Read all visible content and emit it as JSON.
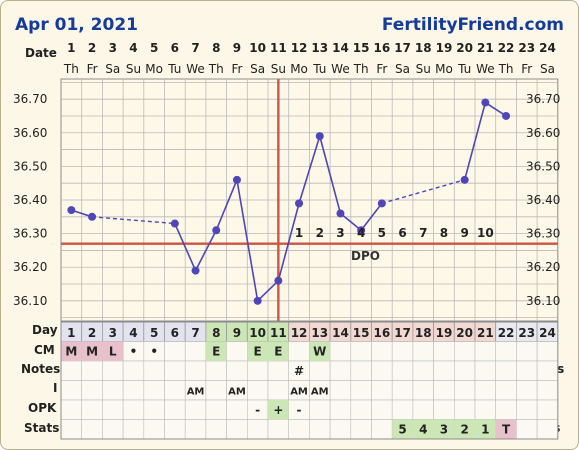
{
  "header": {
    "date": "Apr 01, 2021",
    "brand": "FertilityFriend.com"
  },
  "labels": {
    "date": "Date",
    "day": "Day",
    "dpo": "DPO"
  },
  "row_labels": [
    "CM",
    "Notes",
    "I",
    "OPK",
    "Stats"
  ],
  "days": [
    "1",
    "2",
    "3",
    "4",
    "5",
    "6",
    "7",
    "8",
    "9",
    "10",
    "11",
    "12",
    "13",
    "14",
    "15",
    "16",
    "17",
    "18",
    "19",
    "20",
    "21",
    "22",
    "23",
    "24"
  ],
  "weekdays": [
    "Th",
    "Fr",
    "Sa",
    "Su",
    "Mo",
    "Tu",
    "We",
    "Th",
    "Fr",
    "Sa",
    "Su",
    "Mo",
    "Tu",
    "We",
    "Th",
    "Fr",
    "Sa",
    "Su",
    "Mo",
    "Tu",
    "We",
    "Th",
    "Fr",
    "Sa"
  ],
  "colors": {
    "line": "#4f46b8",
    "coverline": "#cc5544",
    "fertile": "#cde6b6",
    "period": "#e7c1cc",
    "dayrow": "#e3e3ef",
    "luteal": "#f1d8d2",
    "header": "#153c9a"
  },
  "chart_data": {
    "type": "line",
    "x": [
      1,
      2,
      3,
      4,
      5,
      6,
      7,
      8,
      9,
      10,
      11,
      12,
      13,
      14,
      15,
      16,
      17,
      18,
      19,
      20,
      21,
      22,
      23,
      24
    ],
    "temps": [
      36.37,
      36.35,
      null,
      null,
      null,
      36.33,
      36.19,
      36.31,
      36.46,
      36.1,
      36.16,
      36.39,
      36.59,
      36.36,
      36.31,
      36.39,
      null,
      null,
      null,
      36.46,
      36.69,
      36.65,
      null,
      null
    ],
    "dashed_gaps": [
      [
        2,
        6
      ],
      [
        16,
        20
      ]
    ],
    "yticks": [
      "36.10",
      "36.20",
      "36.30",
      "36.40",
      "36.50",
      "36.60",
      "36.70"
    ],
    "ylim": [
      36.04,
      36.76
    ],
    "coverline": 36.27,
    "ovulation_day": 11,
    "dpo": [
      "1",
      "2",
      "3",
      "4",
      "5",
      "6",
      "7",
      "8",
      "9",
      "10"
    ],
    "cycle_days": [
      "1",
      "2",
      "3",
      "4",
      "5",
      "6",
      "7",
      "8",
      "9",
      "10",
      "11",
      "12",
      "13",
      "14",
      "15",
      "16",
      "17",
      "18",
      "19",
      "20",
      "21",
      "22",
      "23",
      "24"
    ],
    "cm": [
      "M",
      "M",
      "L",
      "•",
      "•",
      "",
      "",
      "E",
      "",
      "E",
      "E",
      "",
      "W",
      "",
      "",
      "",
      "",
      "",
      "",
      "",
      "",
      "",
      "",
      ""
    ],
    "notes": [
      "",
      "",
      "",
      "",
      "",
      "",
      "",
      "",
      "",
      "",
      "",
      "#",
      "",
      "",
      "",
      "",
      "",
      "",
      "",
      "",
      "",
      "",
      "",
      ""
    ],
    "intercourse": [
      "",
      "",
      "",
      "",
      "",
      "",
      "AM",
      "",
      "AM",
      "",
      "",
      "AM",
      "AM",
      "",
      "",
      "",
      "",
      "",
      "",
      "",
      "",
      "",
      "",
      ""
    ],
    "opk": [
      "",
      "",
      "",
      "",
      "",
      "",
      "",
      "",
      "",
      "-",
      "+",
      "-",
      "",
      "",
      "",
      "",
      "",
      "",
      "",
      "",
      "",
      "",
      "",
      ""
    ],
    "stats": [
      "",
      "",
      "",
      "",
      "",
      "",
      "",
      "",
      "",
      "",
      "",
      "",
      "",
      "",
      "",
      "",
      "5",
      "4",
      "3",
      "2",
      "1",
      "T",
      "",
      ""
    ]
  }
}
